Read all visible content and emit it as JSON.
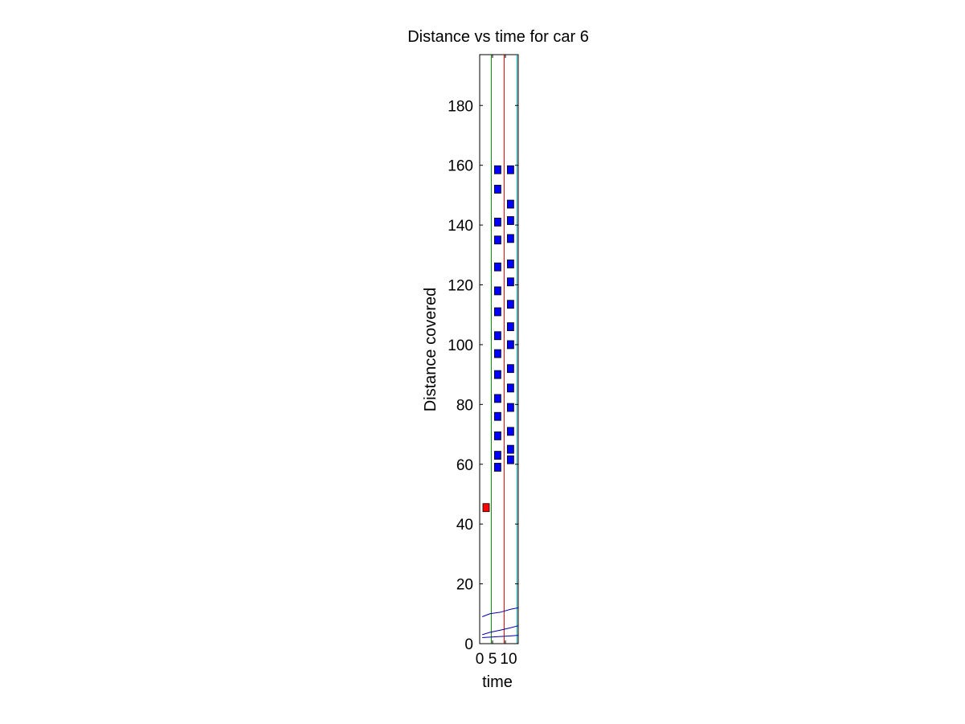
{
  "chart_data": {
    "type": "scatter",
    "title": "Distance vs time for car 6",
    "xlabel": "time",
    "ylabel": "Distance covered",
    "xlim": [
      0,
      15
    ],
    "ylim": [
      0,
      197
    ],
    "xticks": [
      0,
      5,
      10
    ],
    "yticks": [
      0,
      20,
      40,
      60,
      80,
      100,
      120,
      140,
      160,
      180
    ],
    "grid": false,
    "vertical_lines": [
      {
        "x": 4.5,
        "color": "#008000"
      },
      {
        "x": 9.5,
        "color": "#cc0000"
      },
      {
        "x": 14.5,
        "color": "#00aaaa"
      }
    ],
    "curves": [
      {
        "color": "#0000aa",
        "x": [
          1,
          4,
          8,
          12,
          15
        ],
        "y": [
          9,
          10,
          10.5,
          11.5,
          12
        ]
      },
      {
        "color": "#0000aa",
        "x": [
          1,
          4,
          8,
          12,
          15
        ],
        "y": [
          3,
          3.8,
          4.5,
          5.3,
          6
        ]
      },
      {
        "color": "#0000aa",
        "x": [
          1,
          4,
          8,
          12,
          15
        ],
        "y": [
          2,
          2.2,
          2.4,
          2.6,
          2.8
        ]
      }
    ],
    "markers": [
      {
        "name": "red",
        "color": "#ff0000",
        "points": [
          [
            2.5,
            45.5
          ]
        ]
      },
      {
        "name": "blue-col-1",
        "color": "#0000ff",
        "points": [
          [
            7,
            158.5
          ],
          [
            7,
            152
          ],
          [
            7,
            141
          ],
          [
            7,
            135
          ],
          [
            7,
            126
          ],
          [
            7,
            118
          ],
          [
            7,
            111
          ],
          [
            7,
            103
          ],
          [
            7,
            97
          ],
          [
            7,
            90
          ],
          [
            7,
            82
          ],
          [
            7,
            76
          ],
          [
            7,
            69.5
          ],
          [
            7,
            63
          ],
          [
            7,
            59
          ]
        ]
      },
      {
        "name": "blue-col-2",
        "color": "#0000ff",
        "points": [
          [
            12,
            158.5
          ],
          [
            12,
            147
          ],
          [
            12,
            141.5
          ],
          [
            12,
            135.5
          ],
          [
            12,
            127
          ],
          [
            12,
            121
          ],
          [
            12,
            113.5
          ],
          [
            12,
            106
          ],
          [
            12,
            100
          ],
          [
            12,
            92
          ],
          [
            12,
            85.5
          ],
          [
            12,
            79
          ],
          [
            12,
            71
          ],
          [
            12,
            65
          ],
          [
            12,
            61.5
          ]
        ]
      }
    ]
  }
}
